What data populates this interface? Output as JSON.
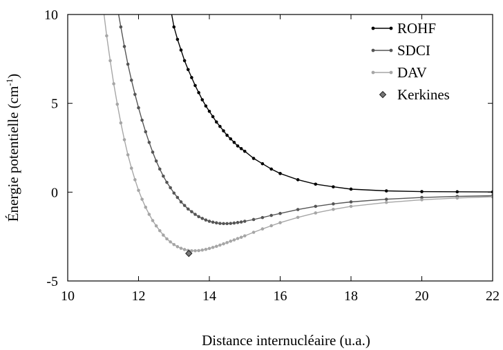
{
  "chart_data": {
    "type": "line",
    "xlabel": "Distance internucléaire (u.a.)",
    "ylabel": "Énergie potentielle (cm",
    "ylabel_sup": "-1",
    "ylabel_close": ")",
    "xlim": [
      10,
      22
    ],
    "ylim": [
      -5,
      10
    ],
    "x_ticks": [
      "10",
      "12",
      "14",
      "16",
      "18",
      "20",
      "22"
    ],
    "y_ticks": [
      "-5",
      "0",
      "5",
      "10"
    ],
    "legend_position": "top-right",
    "series": [
      {
        "name": "ROHF",
        "color": "#000000",
        "marker": "circle",
        "points": [
          [
            12.9,
            10.4
          ],
          [
            13.0,
            9.3
          ],
          [
            13.1,
            8.6
          ],
          [
            13.2,
            8.0
          ],
          [
            13.3,
            7.4
          ],
          [
            13.4,
            6.9
          ],
          [
            13.5,
            6.45
          ],
          [
            13.6,
            6.0
          ],
          [
            13.7,
            5.6
          ],
          [
            13.8,
            5.2
          ],
          [
            13.9,
            4.85
          ],
          [
            14.0,
            4.55
          ],
          [
            14.1,
            4.25
          ],
          [
            14.2,
            3.95
          ],
          [
            14.3,
            3.7
          ],
          [
            14.4,
            3.45
          ],
          [
            14.5,
            3.2
          ],
          [
            14.6,
            3.0
          ],
          [
            14.7,
            2.8
          ],
          [
            14.8,
            2.6
          ],
          [
            14.9,
            2.45
          ],
          [
            15.0,
            2.3
          ],
          [
            15.25,
            1.9
          ],
          [
            15.5,
            1.6
          ],
          [
            15.75,
            1.3
          ],
          [
            16.0,
            1.05
          ],
          [
            16.5,
            0.7
          ],
          [
            17.0,
            0.45
          ],
          [
            17.5,
            0.3
          ],
          [
            18.0,
            0.17
          ],
          [
            19.0,
            0.07
          ],
          [
            20.0,
            0.03
          ],
          [
            21.0,
            0.02
          ],
          [
            22.0,
            0.01
          ]
        ]
      },
      {
        "name": "SDCI",
        "color": "#555555",
        "marker": "circle",
        "points": [
          [
            11.4,
            10.4
          ],
          [
            11.5,
            9.3
          ],
          [
            11.6,
            8.2
          ],
          [
            11.7,
            7.2
          ],
          [
            11.8,
            6.3
          ],
          [
            11.9,
            5.5
          ],
          [
            12.0,
            4.75
          ],
          [
            12.1,
            4.05
          ],
          [
            12.2,
            3.4
          ],
          [
            12.3,
            2.8
          ],
          [
            12.4,
            2.25
          ],
          [
            12.5,
            1.75
          ],
          [
            12.6,
            1.3
          ],
          [
            12.7,
            0.9
          ],
          [
            12.8,
            0.55
          ],
          [
            12.9,
            0.25
          ],
          [
            13.0,
            -0.05
          ],
          [
            13.1,
            -0.3
          ],
          [
            13.2,
            -0.55
          ],
          [
            13.3,
            -0.75
          ],
          [
            13.4,
            -0.95
          ],
          [
            13.5,
            -1.1
          ],
          [
            13.6,
            -1.25
          ],
          [
            13.7,
            -1.38
          ],
          [
            13.8,
            -1.48
          ],
          [
            13.9,
            -1.57
          ],
          [
            14.0,
            -1.64
          ],
          [
            14.1,
            -1.69
          ],
          [
            14.2,
            -1.73
          ],
          [
            14.3,
            -1.76
          ],
          [
            14.4,
            -1.77
          ],
          [
            14.5,
            -1.77
          ],
          [
            14.6,
            -1.76
          ],
          [
            14.7,
            -1.74
          ],
          [
            14.8,
            -1.71
          ],
          [
            14.9,
            -1.68
          ],
          [
            15.0,
            -1.64
          ],
          [
            15.25,
            -1.54
          ],
          [
            15.5,
            -1.43
          ],
          [
            15.75,
            -1.31
          ],
          [
            16.0,
            -1.2
          ],
          [
            16.5,
            -0.98
          ],
          [
            17.0,
            -0.8
          ],
          [
            17.5,
            -0.66
          ],
          [
            18.0,
            -0.55
          ],
          [
            19.0,
            -0.4
          ],
          [
            20.0,
            -0.3
          ],
          [
            21.0,
            -0.24
          ],
          [
            22.0,
            -0.2
          ]
        ]
      },
      {
        "name": "DAV",
        "color": "#a6a6a6",
        "marker": "circle",
        "points": [
          [
            11.0,
            10.4
          ],
          [
            11.1,
            8.8
          ],
          [
            11.2,
            7.4
          ],
          [
            11.3,
            6.1
          ],
          [
            11.4,
            4.95
          ],
          [
            11.5,
            3.9
          ],
          [
            11.6,
            2.95
          ],
          [
            11.7,
            2.1
          ],
          [
            11.8,
            1.35
          ],
          [
            11.9,
            0.7
          ],
          [
            12.0,
            0.1
          ],
          [
            12.1,
            -0.4
          ],
          [
            12.2,
            -0.85
          ],
          [
            12.3,
            -1.25
          ],
          [
            12.4,
            -1.6
          ],
          [
            12.5,
            -1.9
          ],
          [
            12.6,
            -2.17
          ],
          [
            12.7,
            -2.42
          ],
          [
            12.8,
            -2.63
          ],
          [
            12.9,
            -2.8
          ],
          [
            13.0,
            -2.95
          ],
          [
            13.1,
            -3.07
          ],
          [
            13.2,
            -3.16
          ],
          [
            13.3,
            -3.23
          ],
          [
            13.4,
            -3.28
          ],
          [
            13.5,
            -3.3
          ],
          [
            13.6,
            -3.3
          ],
          [
            13.7,
            -3.29
          ],
          [
            13.8,
            -3.26
          ],
          [
            13.9,
            -3.22
          ],
          [
            14.0,
            -3.17
          ],
          [
            14.1,
            -3.11
          ],
          [
            14.2,
            -3.05
          ],
          [
            14.3,
            -2.98
          ],
          [
            14.4,
            -2.91
          ],
          [
            14.5,
            -2.84
          ],
          [
            14.6,
            -2.76
          ],
          [
            14.7,
            -2.69
          ],
          [
            14.8,
            -2.61
          ],
          [
            14.9,
            -2.54
          ],
          [
            15.0,
            -2.46
          ],
          [
            15.25,
            -2.26
          ],
          [
            15.5,
            -2.07
          ],
          [
            15.75,
            -1.89
          ],
          [
            16.0,
            -1.72
          ],
          [
            16.5,
            -1.42
          ],
          [
            17.0,
            -1.17
          ],
          [
            17.5,
            -0.97
          ],
          [
            18.0,
            -0.8
          ],
          [
            19.0,
            -0.58
          ],
          [
            20.0,
            -0.43
          ],
          [
            21.0,
            -0.33
          ],
          [
            22.0,
            -0.26
          ]
        ]
      },
      {
        "name": "Kerkines",
        "color": "#777777",
        "marker": "diamond",
        "points": [
          [
            13.42,
            -3.45
          ]
        ]
      }
    ]
  }
}
